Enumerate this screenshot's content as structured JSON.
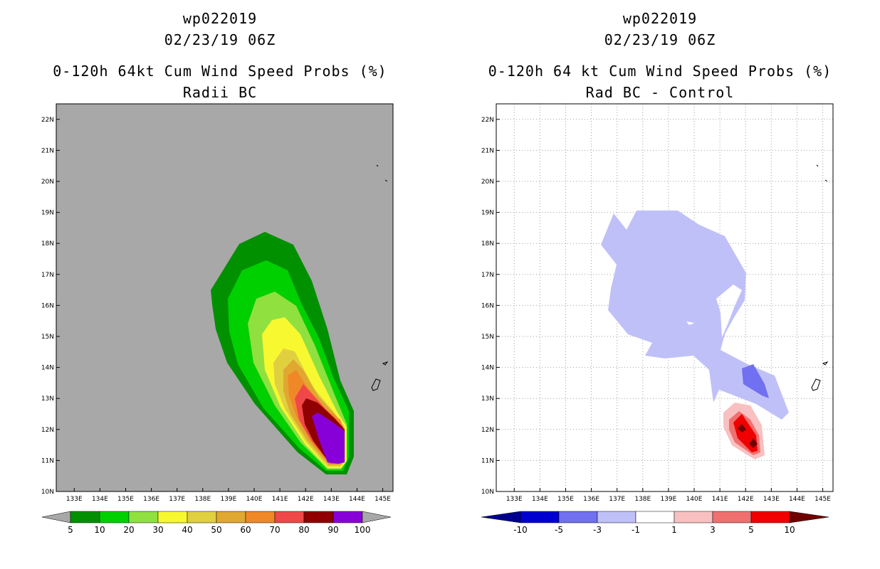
{
  "chart_data": [
    {
      "type": "contour",
      "storm_id": "wp022019",
      "datetime": "02/23/19 06Z",
      "title": "0-120h 64kt Cum Wind Speed Probs (%)",
      "subtitle": "Radii BC",
      "x_ticks": [
        "133E",
        "134E",
        "135E",
        "136E",
        "137E",
        "138E",
        "139E",
        "140E",
        "141E",
        "142E",
        "143E",
        "144E",
        "145E"
      ],
      "y_ticks": [
        "10N",
        "11N",
        "12N",
        "13N",
        "14N",
        "15N",
        "16N",
        "17N",
        "18N",
        "19N",
        "20N",
        "21N",
        "22N"
      ],
      "lon_range": [
        132.3,
        145.4
      ],
      "lat_range": [
        10,
        22.5
      ],
      "legend_levels": [
        "5",
        "10",
        "20",
        "30",
        "40",
        "50",
        "60",
        "70",
        "80",
        "90",
        "100"
      ],
      "legend_colors": [
        "#009000",
        "#00d000",
        "#90e040",
        "#f8f830",
        "#e0d040",
        "#e0a830",
        "#f08828",
        "#f04848",
        "#900000",
        "#8800d8"
      ],
      "background": "#a8a8a8",
      "grid": false
    },
    {
      "type": "contour",
      "storm_id": "wp022019",
      "datetime": "02/23/19 06Z",
      "title": "0-120h 64 kt Cum Wind Speed Probs (%)",
      "subtitle": "Rad BC - Control",
      "x_ticks": [
        "133E",
        "134E",
        "135E",
        "136E",
        "137E",
        "138E",
        "139E",
        "140E",
        "141E",
        "142E",
        "143E",
        "144E",
        "145E"
      ],
      "y_ticks": [
        "10N",
        "11N",
        "12N",
        "13N",
        "14N",
        "15N",
        "16N",
        "17N",
        "18N",
        "19N",
        "20N",
        "21N",
        "22N"
      ],
      "lon_range": [
        132.3,
        145.4
      ],
      "lat_range": [
        10,
        22.5
      ],
      "legend_levels": [
        "-10",
        "-5",
        "-3",
        "-1",
        "1",
        "3",
        "5",
        "10"
      ],
      "legend_colors": [
        "#0000d0",
        "#7070f0",
        "#c0c0f8",
        "#ffffff",
        "#f8c0c0",
        "#f07070",
        "#f00000"
      ],
      "legend_end_colors": [
        "#000090",
        "#700000"
      ],
      "background": "#ffffff",
      "grid": true
    }
  ]
}
